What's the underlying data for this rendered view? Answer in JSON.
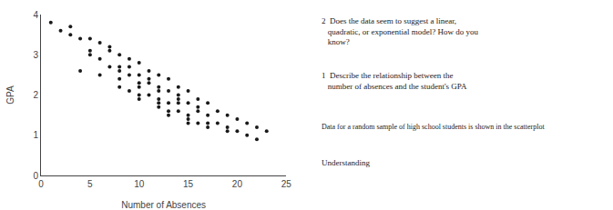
{
  "chart_data": {
    "type": "scatter",
    "xlabel": "Number of Absences",
    "ylabel": "GPA",
    "annotations": [
      "2  Does the data seem to suggest a linear,\n   quadratic, or exponential model? How do you\n   know?",
      "1  Describe the relationship between the\n   number of absences and the student's GPA",
      "Data for a random sample of high school students is shown in the scatterplot",
      "Understanding"
    ],
    "x": [
      1,
      2,
      3,
      4,
      5,
      5,
      6,
      6,
      7,
      7,
      8,
      8,
      8,
      9,
      9,
      9,
      10,
      10,
      10,
      10,
      11,
      11,
      11,
      12,
      12,
      12,
      12,
      13,
      13,
      13,
      13,
      14,
      14,
      14,
      15,
      15,
      15,
      15,
      16,
      16,
      16,
      17,
      17,
      17,
      18,
      18,
      19,
      19,
      20,
      20,
      21,
      21,
      22,
      22,
      23,
      4,
      6,
      8,
      10,
      12,
      3,
      7,
      9,
      11,
      14,
      16,
      13,
      15,
      17,
      19,
      5,
      8,
      10,
      12,
      14
    ],
    "values": [
      3.8,
      3.6,
      3.5,
      3.4,
      3.4,
      3.1,
      3.3,
      2.9,
      3.2,
      2.7,
      3.0,
      2.7,
      2.4,
      2.9,
      2.5,
      2.1,
      2.8,
      2.5,
      2.2,
      1.9,
      2.6,
      2.3,
      2.0,
      2.5,
      2.2,
      1.9,
      1.7,
      2.4,
      2.1,
      1.8,
      1.5,
      2.2,
      1.9,
      1.6,
      2.1,
      1.8,
      1.5,
      1.3,
      1.9,
      1.6,
      1.3,
      1.8,
      1.5,
      1.2,
      1.6,
      1.3,
      1.5,
      1.2,
      1.4,
      1.1,
      1.3,
      1.0,
      1.2,
      0.9,
      1.1,
      2.6,
      2.5,
      2.2,
      2.0,
      1.8,
      3.7,
      3.1,
      2.7,
      2.4,
      2.0,
      1.7,
      1.6,
      1.4,
      1.3,
      1.1,
      3.0,
      2.6,
      2.3,
      2.1,
      1.8
    ],
    "color": "#1a1a1a",
    "xlim": [
      0,
      25
    ],
    "xticks": [
      0,
      5,
      10,
      15,
      20,
      25
    ],
    "ylim": [
      0,
      4
    ],
    "yticks": [
      0,
      1,
      2,
      3,
      4
    ],
    "grid": false
  }
}
